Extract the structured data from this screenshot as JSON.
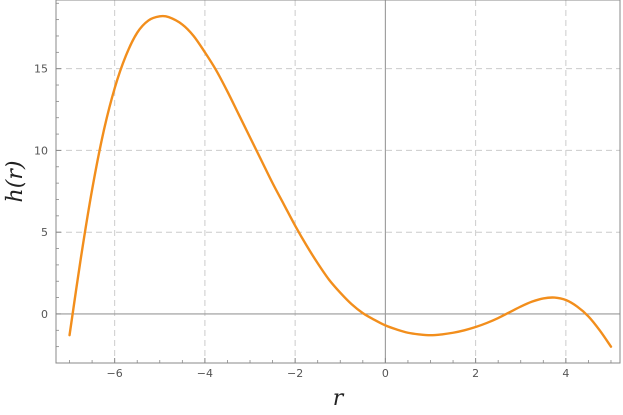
{
  "chart_data": {
    "type": "line",
    "title": "",
    "xlabel": "r",
    "ylabel": "h(r)",
    "xlim": [
      -7.3,
      5.2
    ],
    "ylim": [
      -3.0,
      19.2
    ],
    "grid": true,
    "grid_style": "dashed",
    "x_ticks": [
      -6,
      -4,
      -2,
      0,
      2,
      4
    ],
    "y_ticks": [
      0,
      5,
      10,
      15
    ],
    "x_tick_labels": [
      "−6",
      "−4",
      "−2",
      "0",
      "2",
      "4"
    ],
    "y_tick_labels": [
      "0",
      "5",
      "10",
      "15"
    ],
    "colors": {
      "series": "#f28e1c",
      "axis": "#999999",
      "grid": "#cccccc",
      "frame": "#888888"
    },
    "series": [
      {
        "x": [
          -7.0,
          -6.75,
          -6.5,
          -6.25,
          -6.0,
          -5.75,
          -5.5,
          -5.25,
          -5.0,
          -4.8,
          -4.5,
          -4.25,
          -4.0,
          -3.75,
          -3.5,
          -3.25,
          -3.0,
          -2.75,
          -2.5,
          -2.25,
          -2.0,
          -1.75,
          -1.5,
          -1.25,
          -1.0,
          -0.75,
          -0.5,
          -0.25,
          0.0,
          0.25,
          0.5,
          0.75,
          1.0,
          1.25,
          1.5,
          1.75,
          2.0,
          2.25,
          2.5,
          2.75,
          3.0,
          3.25,
          3.5,
          3.75,
          4.0,
          4.25,
          4.5,
          4.75,
          5.0
        ],
        "y": [
          -1.3,
          3.4,
          7.6,
          11.1,
          13.8,
          15.8,
          17.2,
          17.95,
          18.2,
          18.15,
          17.7,
          17.0,
          16.0,
          14.9,
          13.6,
          12.2,
          10.8,
          9.4,
          8.0,
          6.7,
          5.4,
          4.2,
          3.1,
          2.1,
          1.3,
          0.6,
          0.05,
          -0.35,
          -0.7,
          -0.95,
          -1.15,
          -1.25,
          -1.3,
          -1.25,
          -1.15,
          -1.0,
          -0.8,
          -0.55,
          -0.25,
          0.1,
          0.45,
          0.75,
          0.95,
          1.0,
          0.85,
          0.45,
          -0.15,
          -1.0,
          -2.0
        ]
      }
    ]
  }
}
